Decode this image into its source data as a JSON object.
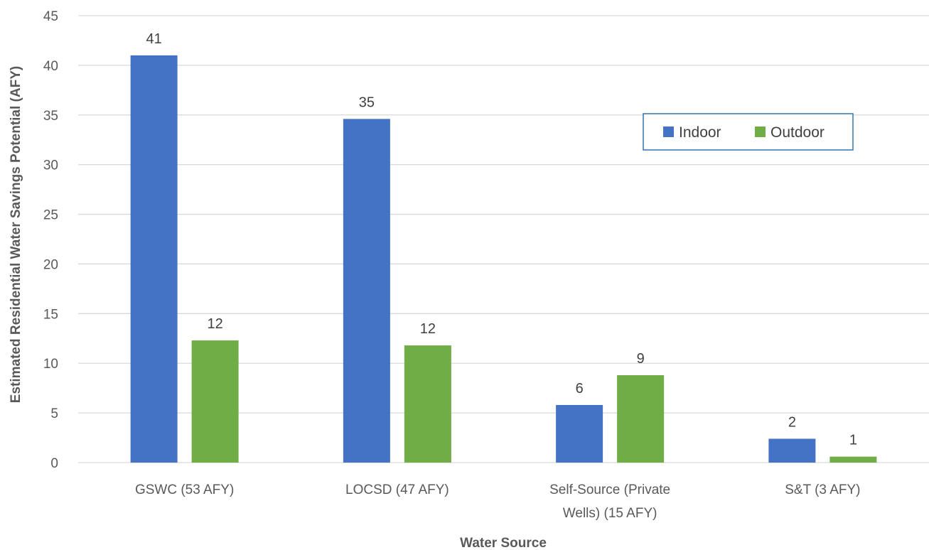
{
  "chart_data": {
    "type": "bar",
    "categories": [
      "GSWC (53 AFY)",
      "LOCSD (47 AFY)",
      "Self-Source (Private Wells) (15 AFY)",
      "S&T (3 AFY)"
    ],
    "category_lines": [
      [
        "GSWC (53 AFY)"
      ],
      [
        "LOCSD (47 AFY)"
      ],
      [
        "Self-Source (Private",
        "Wells) (15 AFY)"
      ],
      [
        "S&T (3 AFY)"
      ]
    ],
    "series": [
      {
        "name": "Indoor",
        "color": "#4472C4",
        "values": [
          41,
          34.6,
          5.8,
          2.4
        ],
        "labels": [
          "41",
          "35",
          "6",
          "2"
        ]
      },
      {
        "name": "Outdoor",
        "color": "#70AD47",
        "values": [
          12.3,
          11.8,
          8.8,
          0.6
        ],
        "labels": [
          "12",
          "12",
          "9",
          "1"
        ]
      }
    ],
    "xlabel": "Water Source",
    "ylabel": "Estimated Residential Water Savings Potential (AFY)",
    "ylim": [
      0,
      45
    ],
    "yticks": [
      0,
      5,
      10,
      15,
      20,
      25,
      30,
      35,
      40,
      45
    ],
    "grid": true,
    "legend_position": "top-right",
    "gridline_color": "#d9d9d9"
  }
}
